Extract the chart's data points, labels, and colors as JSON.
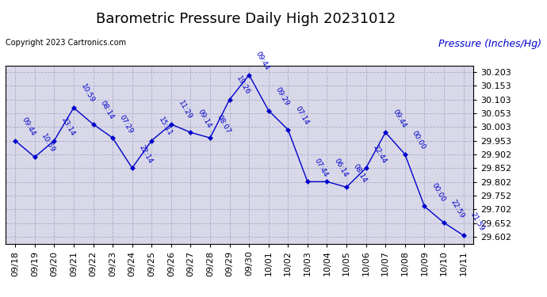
{
  "title": "Barometric Pressure Daily High 20231012",
  "copyright": "Copyright 2023 Cartronics.com",
  "ylabel": "Pressure (Inches/Hg)",
  "background_color": "#ffffff",
  "plot_bg_color": "#d8d8e8",
  "grid_color": "#aaaacc",
  "line_color": "#0000cc",
  "text_color": "#0000cc",
  "ylim_min": 29.577,
  "ylim_max": 30.228,
  "yticks": [
    29.602,
    29.652,
    29.702,
    29.752,
    29.802,
    29.852,
    29.902,
    29.953,
    30.003,
    30.053,
    30.103,
    30.153,
    30.203
  ],
  "dates": [
    "09/18",
    "09/19",
    "09/20",
    "09/21",
    "09/22",
    "09/23",
    "09/24",
    "09/25",
    "09/26",
    "09/27",
    "09/28",
    "09/29",
    "09/30",
    "10/01",
    "10/02",
    "10/03",
    "10/04",
    "10/05",
    "10/06",
    "10/07",
    "10/08",
    "10/09",
    "10/10",
    "10/11"
  ],
  "values": [
    29.953,
    29.893,
    29.953,
    30.073,
    30.013,
    29.963,
    29.853,
    29.953,
    30.013,
    29.983,
    29.963,
    30.103,
    30.193,
    30.063,
    29.993,
    29.803,
    29.803,
    29.783,
    29.853,
    29.983,
    29.903,
    29.713,
    29.653,
    29.607
  ],
  "time_labels": [
    "09:44",
    "10:59",
    "23:14",
    "10:59",
    "08:14",
    "07:29",
    "22:14",
    "15:11",
    "11:29",
    "09:14",
    "08:07",
    "19:26",
    "09:44",
    "09:29",
    "07:14",
    "07:44",
    "06:14",
    "08:14",
    "22:44",
    "09:44",
    "00:00",
    "00:00",
    "22:59",
    "21:59"
  ],
  "title_fontsize": 13,
  "axis_fontsize": 8,
  "label_fontsize": 6.5,
  "ylabel_fontsize": 9
}
